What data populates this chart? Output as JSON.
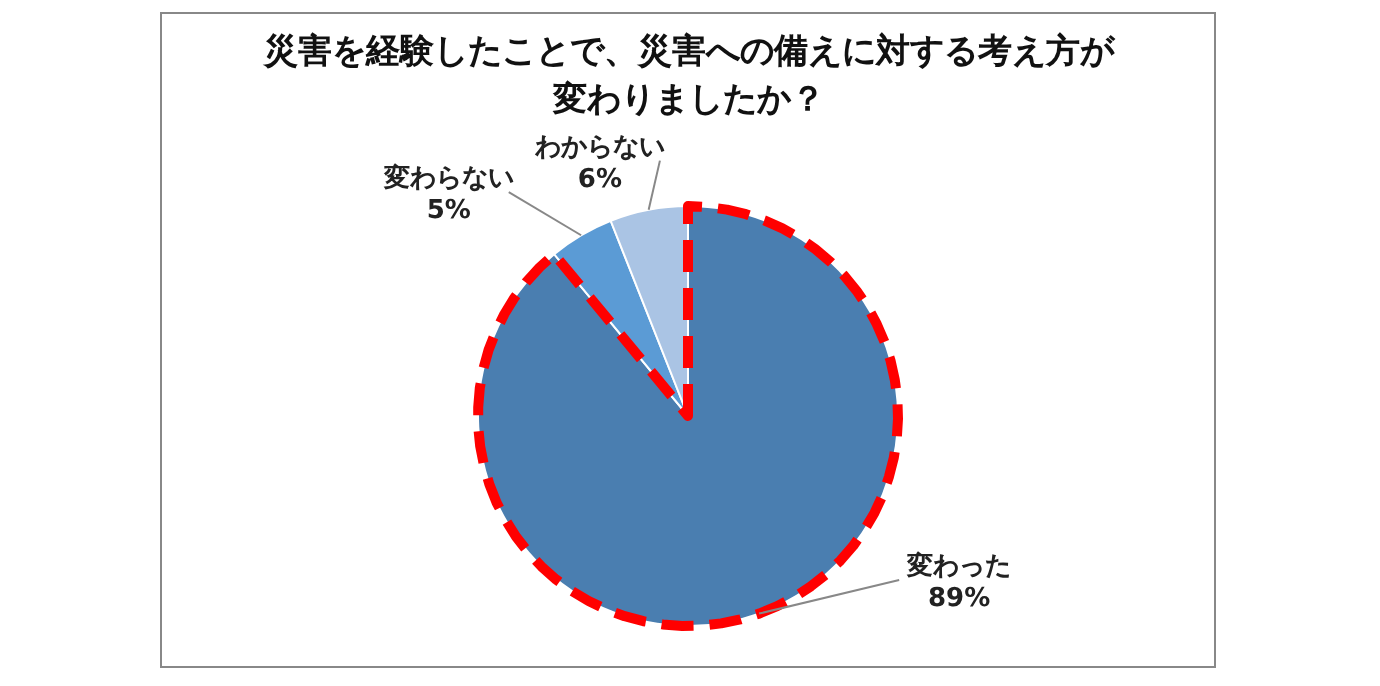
{
  "chart_data": {
    "type": "pie",
    "title": "災害を経験したことで、災害への備えに対する考え方が変わりましたか？",
    "categories": [
      "変わった",
      "変わらない",
      "わからない"
    ],
    "values": [
      89,
      5,
      6
    ],
    "value_labels": [
      "89%",
      "5%",
      "6%"
    ],
    "colors": [
      "#4a7eb0",
      "#5b9bd5",
      "#aac4e4"
    ]
  }
}
